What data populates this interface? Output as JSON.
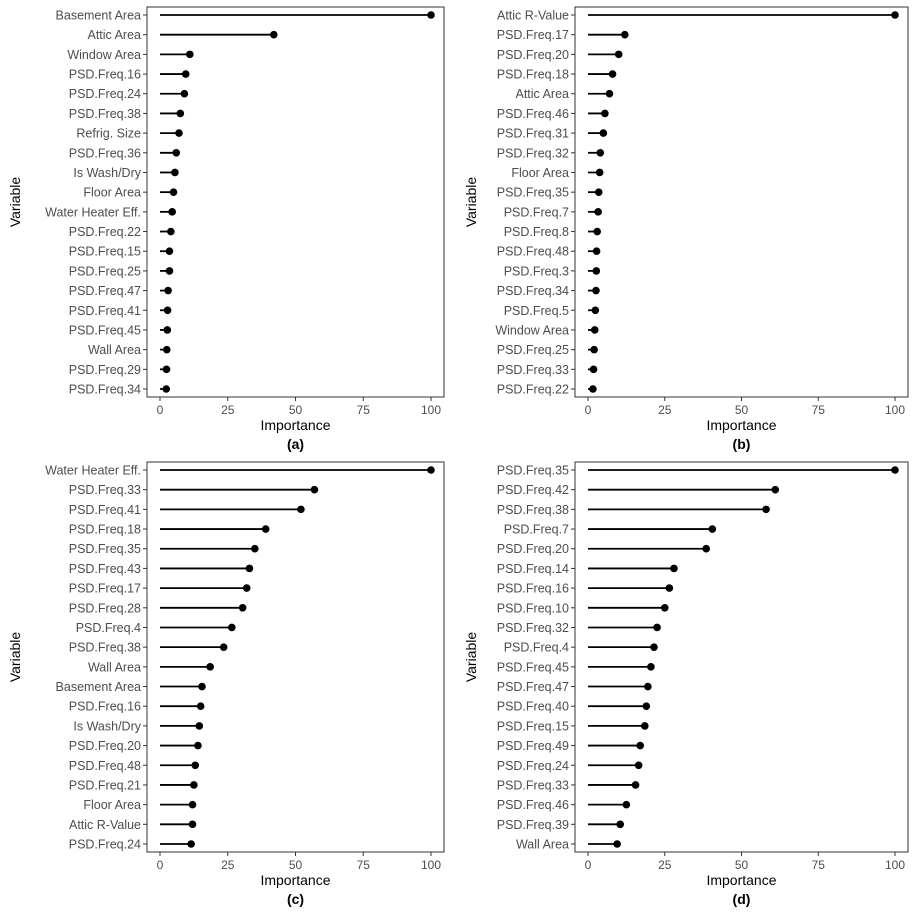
{
  "figure": {
    "xlabel": "Importance",
    "ylabel": "Variable"
  },
  "chart_data": [
    {
      "type": "lollipop",
      "caption": "(a)",
      "xlabel": "Importance",
      "ylabel": "Variable",
      "xlim": [
        0,
        100
      ],
      "xticks": [
        0,
        25,
        50,
        75,
        100
      ],
      "categories": [
        "Basement Area",
        "Attic Area",
        "Window Area",
        "PSD.Freq.16",
        "PSD.Freq.24",
        "PSD.Freq.38",
        "Refrig. Size",
        "PSD.Freq.36",
        "Is Wash/Dry",
        "Floor Area",
        "Water Heater Eff.",
        "PSD.Freq.22",
        "PSD.Freq.15",
        "PSD.Freq.25",
        "PSD.Freq.47",
        "PSD.Freq.41",
        "PSD.Freq.45",
        "Wall Area",
        "PSD.Freq.29",
        "PSD.Freq.34"
      ],
      "values": [
        100,
        42,
        11,
        9.5,
        9,
        7.5,
        7,
        6,
        5.5,
        5,
        4.5,
        4,
        3.5,
        3.5,
        3,
        2.8,
        2.7,
        2.5,
        2.4,
        2.3
      ]
    },
    {
      "type": "lollipop",
      "caption": "(b)",
      "xlabel": "Importance",
      "ylabel": "Variable",
      "xlim": [
        0,
        100
      ],
      "xticks": [
        0,
        25,
        50,
        75,
        100
      ],
      "categories": [
        "Attic R-Value",
        "PSD.Freq.17",
        "PSD.Freq.20",
        "PSD.Freq.18",
        "Attic Area",
        "PSD.Freq.46",
        "PSD.Freq.31",
        "PSD.Freq.32",
        "Floor Area",
        "PSD.Freq.35",
        "PSD.Freq.7",
        "PSD.Freq.8",
        "PSD.Freq.48",
        "PSD.Freq.3",
        "PSD.Freq.34",
        "PSD.Freq.5",
        "Window Area",
        "PSD.Freq.25",
        "PSD.Freq.33",
        "PSD.Freq.22"
      ],
      "values": [
        100,
        12,
        10,
        8,
        7,
        5.5,
        5,
        4,
        3.8,
        3.5,
        3.3,
        3,
        2.8,
        2.7,
        2.6,
        2.4,
        2.2,
        2,
        1.8,
        1.6
      ]
    },
    {
      "type": "lollipop",
      "caption": "(c)",
      "xlabel": "Importance",
      "ylabel": "Variable",
      "xlim": [
        0,
        100
      ],
      "xticks": [
        0,
        25,
        50,
        75,
        100
      ],
      "categories": [
        "Water Heater Eff.",
        "PSD.Freq.33",
        "PSD.Freq.41",
        "PSD.Freq.18",
        "PSD.Freq.35",
        "PSD.Freq.43",
        "PSD.Freq.17",
        "PSD.Freq.28",
        "PSD.Freq.4",
        "PSD.Freq.38",
        "Wall Area",
        "Basement Area",
        "PSD.Freq.16",
        "Is Wash/Dry",
        "PSD.Freq.20",
        "PSD.Freq.48",
        "PSD.Freq.21",
        "Floor Area",
        "Attic R-Value",
        "PSD.Freq.24"
      ],
      "values": [
        100,
        57,
        52,
        39,
        35,
        33,
        32,
        30.5,
        26.5,
        23.5,
        18.5,
        15.5,
        15,
        14.5,
        14,
        13,
        12.5,
        12,
        12,
        11.5
      ]
    },
    {
      "type": "lollipop",
      "caption": "(d)",
      "xlabel": "Importance",
      "ylabel": "Variable",
      "xlim": [
        0,
        100
      ],
      "xticks": [
        0,
        25,
        50,
        75,
        100
      ],
      "categories": [
        "PSD.Freq.35",
        "PSD.Freq.42",
        "PSD.Freq.38",
        "PSD.Freq.7",
        "PSD.Freq.20",
        "PSD.Freq.14",
        "PSD.Freq.16",
        "PSD.Freq.10",
        "PSD.Freq.32",
        "PSD.Freq.4",
        "PSD.Freq.45",
        "PSD.Freq.47",
        "PSD.Freq.40",
        "PSD.Freq.15",
        "PSD.Freq.49",
        "PSD.Freq.24",
        "PSD.Freq.33",
        "PSD.Freq.46",
        "PSD.Freq.39",
        "Wall Area"
      ],
      "values": [
        100,
        61,
        58,
        40.5,
        38.5,
        28,
        26.5,
        25,
        22.5,
        21.5,
        20.5,
        19.5,
        19,
        18.5,
        17,
        16.5,
        15.5,
        12.5,
        10.5,
        9.5
      ]
    }
  ]
}
